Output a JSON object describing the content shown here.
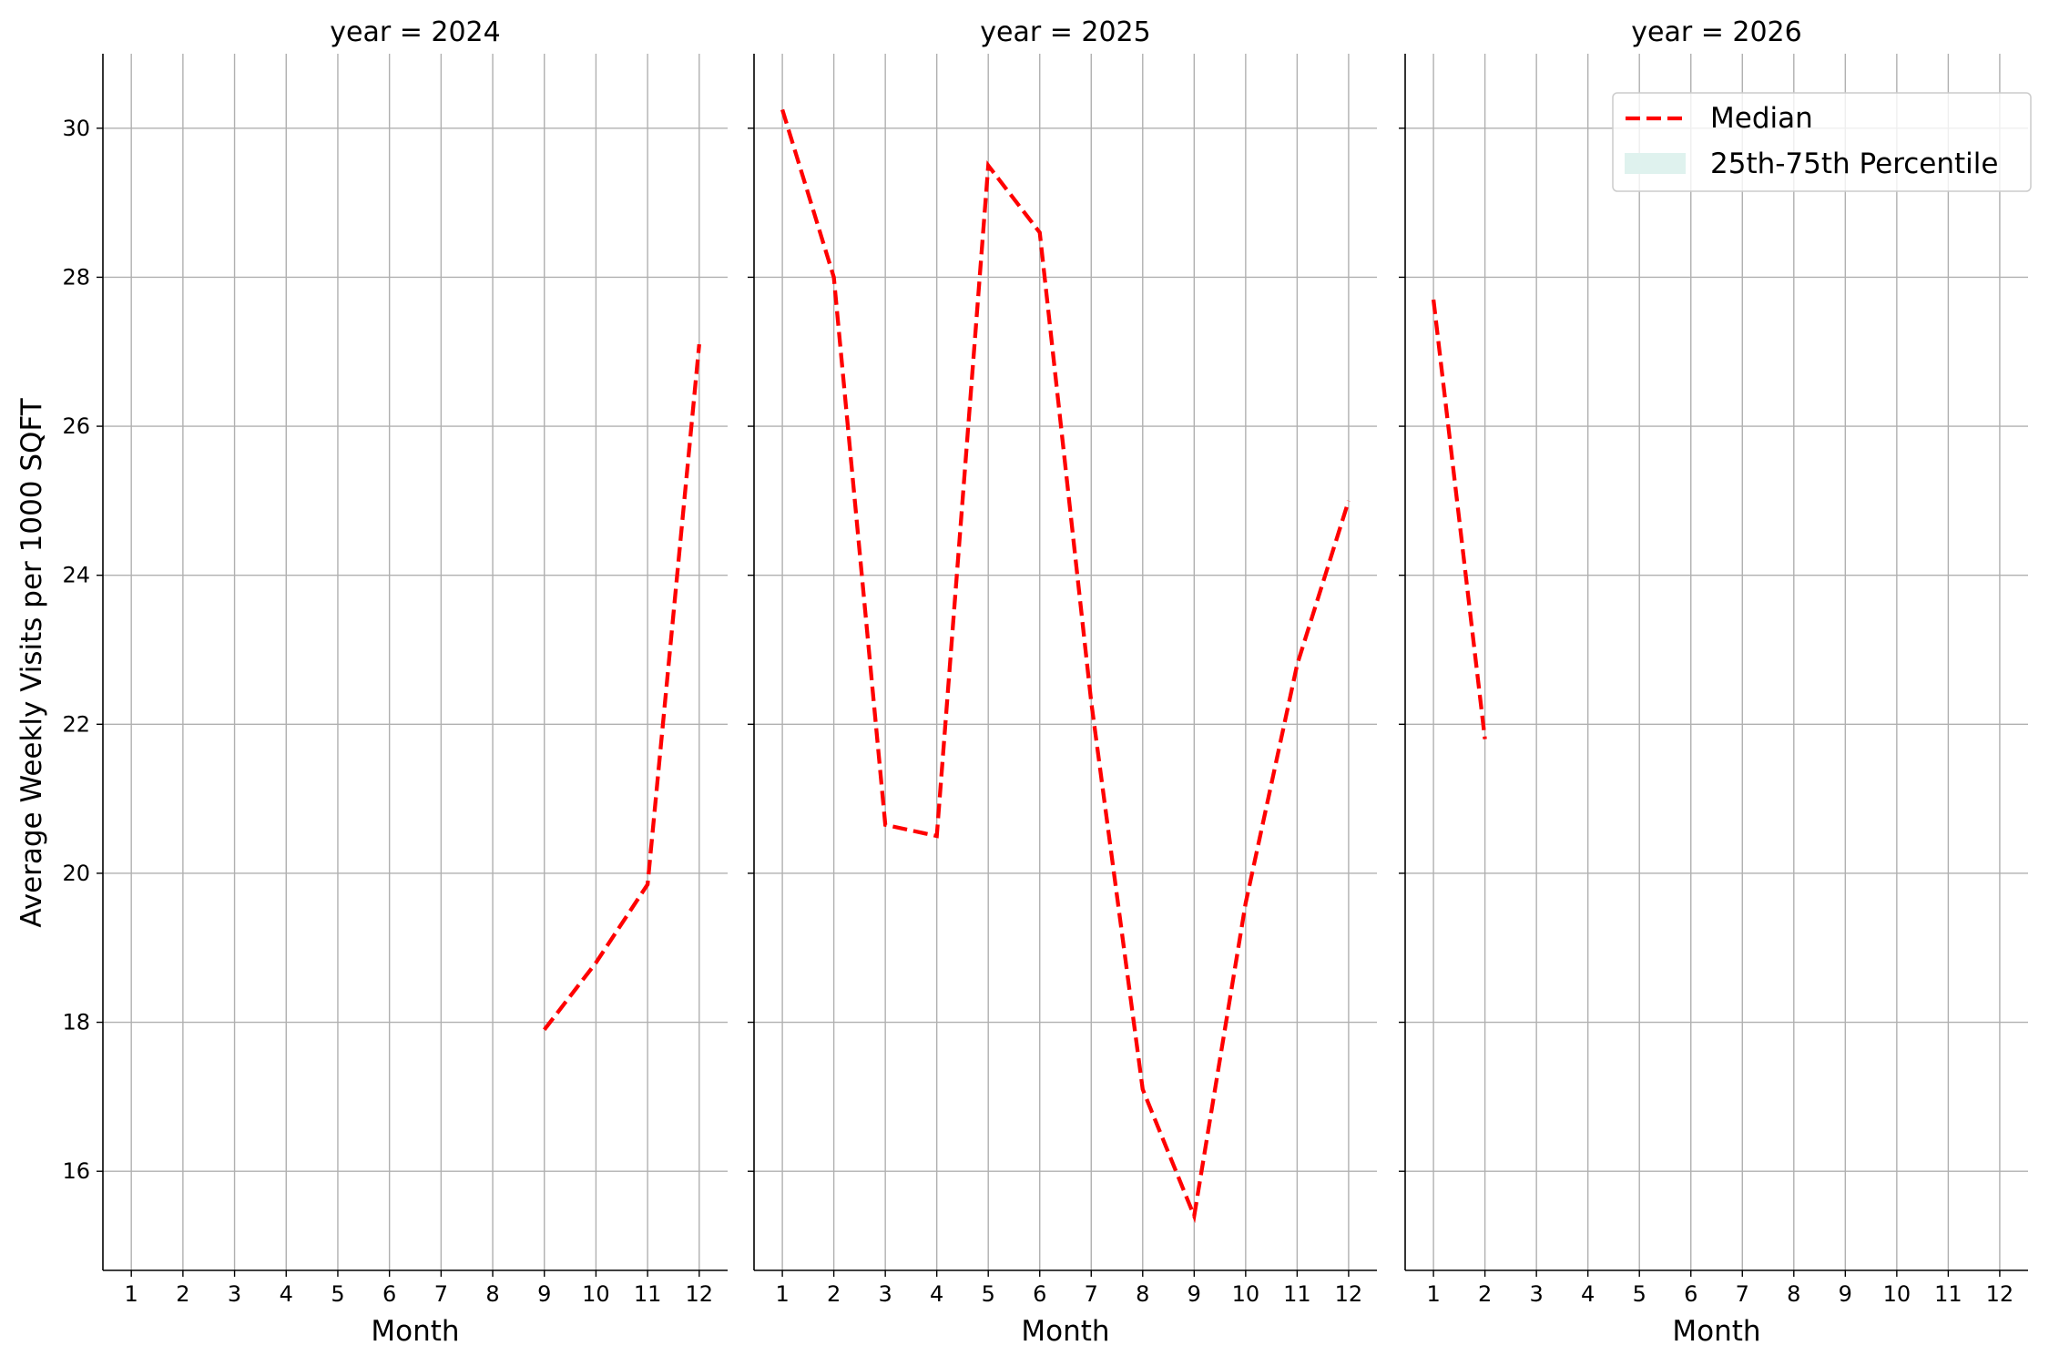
{
  "chart_data": {
    "type": "line",
    "ylabel": "Average Weekly Visits per 1000 SQFT",
    "ylim": [
      14.67,
      31.0
    ],
    "yticks": [
      16,
      18,
      20,
      22,
      24,
      26,
      28,
      30
    ],
    "xlim": [
      0.45,
      12.55
    ],
    "xticks": [
      1,
      2,
      3,
      4,
      5,
      6,
      7,
      8,
      9,
      10,
      11,
      12
    ],
    "grid": true,
    "legend": {
      "placement": "upper right (year = 2026 panel)",
      "entries": [
        {
          "label": "Median",
          "kind": "dashed-line",
          "color": "#ff0000"
        },
        {
          "label": "25th-75th Percentile",
          "kind": "patch",
          "color": "#dff2ee"
        }
      ]
    },
    "panels": [
      {
        "title": "year = 2024",
        "xlabel": "Month",
        "series": [
          {
            "name": "Median",
            "color": "#ff0000",
            "x": [
              9,
              10,
              11,
              12
            ],
            "y": [
              17.9,
              18.8,
              19.85,
              27.1
            ]
          }
        ]
      },
      {
        "title": "year = 2025",
        "xlabel": "Month",
        "series": [
          {
            "name": "Median",
            "color": "#ff0000",
            "x": [
              1,
              2,
              3,
              4,
              5,
              6,
              7,
              8,
              9,
              10,
              11,
              12
            ],
            "y": [
              30.25,
              28.0,
              20.65,
              20.5,
              29.5,
              28.6,
              22.3,
              17.1,
              15.4,
              19.6,
              22.8,
              25.0
            ]
          }
        ]
      },
      {
        "title": "year = 2026",
        "xlabel": "Month",
        "series": [
          {
            "name": "Median",
            "color": "#ff0000",
            "x": [
              1,
              2
            ],
            "y": [
              27.7,
              21.8
            ]
          }
        ]
      }
    ]
  }
}
